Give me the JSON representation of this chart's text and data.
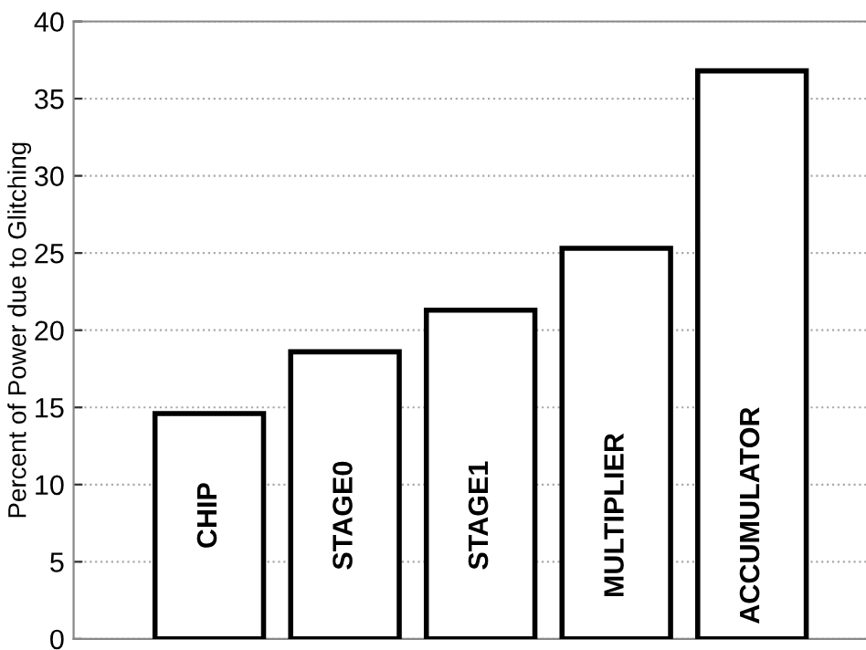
{
  "chart_data": {
    "type": "bar",
    "ylabel": "Percent of Power due to Glitching",
    "categories": [
      "CHIP",
      "STAGE0",
      "STAGE1",
      "MULTIPLIER",
      "ACCUMULATOR"
    ],
    "values": [
      14.6,
      18.6,
      21.3,
      25.3,
      36.8
    ],
    "color": "#ffffff",
    "ylim": [
      0,
      40
    ],
    "yticks": [
      0,
      5,
      10,
      15,
      20,
      25,
      30,
      35,
      40
    ],
    "grid": "y"
  }
}
